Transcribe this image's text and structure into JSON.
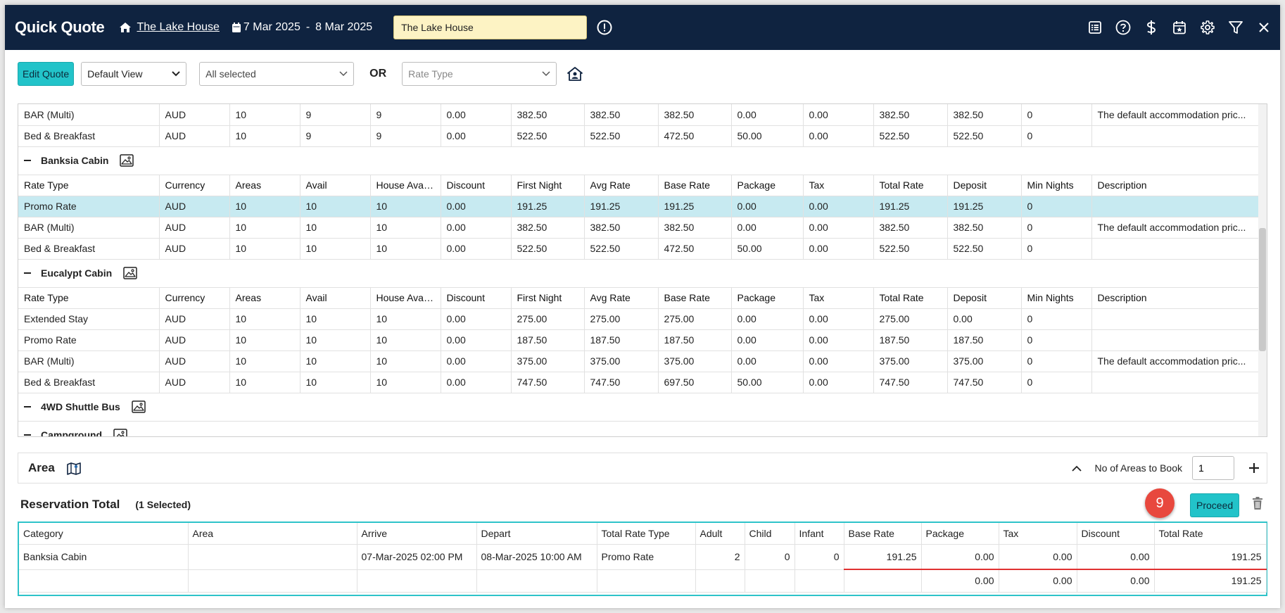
{
  "header": {
    "title": "Quick Quote",
    "property": "The Lake House",
    "date_from": "7 Mar 2025",
    "date_sep": "-",
    "date_to": "8 Mar 2025",
    "property_input": "The Lake House"
  },
  "toolbar": {
    "edit_quote": "Edit Quote",
    "view_select": "Default View",
    "category_select": "All selected",
    "or_label": "OR",
    "rate_type_placeholder": "Rate Type"
  },
  "top_rows": [
    [
      "BAR (Multi)",
      "AUD",
      "10",
      "9",
      "9",
      "0.00",
      "382.50",
      "382.50",
      "382.50",
      "0.00",
      "0.00",
      "382.50",
      "382.50",
      "0",
      "The default accommodation pric..."
    ],
    [
      "Bed & Breakfast",
      "AUD",
      "10",
      "9",
      "9",
      "0.00",
      "522.50",
      "522.50",
      "472.50",
      "50.00",
      "0.00",
      "522.50",
      "522.50",
      "0",
      ""
    ]
  ],
  "columns": [
    "Rate Type",
    "Currency",
    "Areas",
    "Avail",
    "House Avail...",
    "Discount",
    "First Night",
    "Avg Rate",
    "Base Rate",
    "Package",
    "Tax",
    "Total Rate",
    "Deposit",
    "Min Nights",
    "Description"
  ],
  "categories": [
    {
      "name": "Banksia Cabin",
      "rows": [
        [
          "Promo Rate",
          "AUD",
          "10",
          "10",
          "10",
          "0.00",
          "191.25",
          "191.25",
          "191.25",
          "0.00",
          "0.00",
          "191.25",
          "191.25",
          "0",
          ""
        ],
        [
          "BAR (Multi)",
          "AUD",
          "10",
          "10",
          "10",
          "0.00",
          "382.50",
          "382.50",
          "382.50",
          "0.00",
          "0.00",
          "382.50",
          "382.50",
          "0",
          "The default accommodation pric..."
        ],
        [
          "Bed & Breakfast",
          "AUD",
          "10",
          "10",
          "10",
          "0.00",
          "522.50",
          "522.50",
          "472.50",
          "50.00",
          "0.00",
          "522.50",
          "522.50",
          "0",
          ""
        ]
      ]
    },
    {
      "name": "Eucalypt Cabin",
      "rows": [
        [
          "Extended Stay",
          "AUD",
          "10",
          "10",
          "10",
          "0.00",
          "275.00",
          "275.00",
          "275.00",
          "0.00",
          "0.00",
          "275.00",
          "0.00",
          "0",
          ""
        ],
        [
          "Promo Rate",
          "AUD",
          "10",
          "10",
          "10",
          "0.00",
          "187.50",
          "187.50",
          "187.50",
          "0.00",
          "0.00",
          "187.50",
          "187.50",
          "0",
          ""
        ],
        [
          "BAR (Multi)",
          "AUD",
          "10",
          "10",
          "10",
          "0.00",
          "375.00",
          "375.00",
          "375.00",
          "0.00",
          "0.00",
          "375.00",
          "375.00",
          "0",
          "The default accommodation pric..."
        ],
        [
          "Bed & Breakfast",
          "AUD",
          "10",
          "10",
          "10",
          "0.00",
          "747.50",
          "747.50",
          "697.50",
          "50.00",
          "0.00",
          "747.50",
          "747.50",
          "0",
          ""
        ]
      ]
    },
    {
      "name": "4WD Shuttle Bus",
      "rows": []
    },
    {
      "name": "Campground",
      "rows": []
    }
  ],
  "area": {
    "label": "Area",
    "areas_to_book_label": "No of Areas to Book",
    "areas_to_book_value": "1"
  },
  "reservation": {
    "title": "Reservation Total",
    "selected": "(1 Selected)",
    "badge": "9",
    "proceed": "Proceed",
    "columns": [
      "Category",
      "Area",
      "Arrive",
      "Depart",
      "Total Rate Type",
      "Adult",
      "Child",
      "Infant",
      "Base Rate",
      "Package",
      "Tax",
      "Discount",
      "Total Rate"
    ],
    "row": [
      "Banksia Cabin",
      "",
      "07-Mar-2025 02:00 PM",
      "08-Mar-2025 10:00 AM",
      "Promo Rate",
      "2",
      "0",
      "0",
      "191.25",
      "0.00",
      "0.00",
      "0.00",
      "191.25"
    ],
    "totals": [
      "",
      "",
      "",
      "",
      "",
      "",
      "",
      "",
      "",
      "0.00",
      "0.00",
      "0.00",
      "191.25"
    ]
  },
  "colors": {
    "header_bg": "#0f2340",
    "accent": "#22c3c9",
    "selected_row": "#c7eaf1",
    "badge": "#e8483e"
  }
}
